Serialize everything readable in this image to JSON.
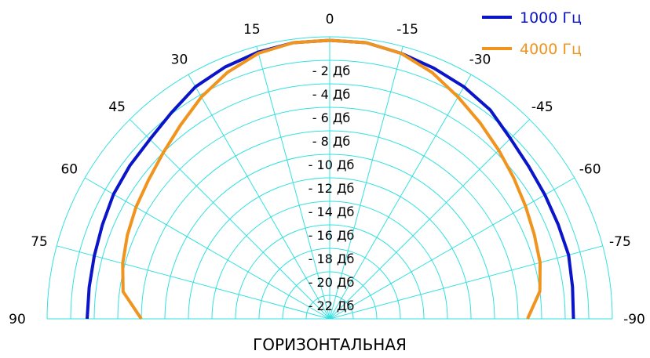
{
  "chart_data": {
    "type": "polar-line",
    "xlabel": "ГОРИЗОНТАЛЬНАЯ",
    "angle_range_deg": [
      -90,
      90
    ],
    "angle_step_deg": 15,
    "angle_labels": [
      {
        "angle": 90,
        "text": "90"
      },
      {
        "angle": 75,
        "text": "75"
      },
      {
        "angle": 60,
        "text": "60"
      },
      {
        "angle": 45,
        "text": "45"
      },
      {
        "angle": 30,
        "text": "30"
      },
      {
        "angle": 15,
        "text": "15"
      },
      {
        "angle": 0,
        "text": "0"
      },
      {
        "angle": -15,
        "text": "-15"
      },
      {
        "angle": -30,
        "text": "-30"
      },
      {
        "angle": -45,
        "text": "-45"
      },
      {
        "angle": -60,
        "text": "-60"
      },
      {
        "angle": -75,
        "text": "-75"
      },
      {
        "angle": -90,
        "text": "-90"
      }
    ],
    "r_range_db": [
      -24,
      0
    ],
    "ring_step_db": 2,
    "ring_labels": [
      {
        "db": -2,
        "text": "- 2 Дб"
      },
      {
        "db": -4,
        "text": "- 4 Дб"
      },
      {
        "db": -6,
        "text": "- 6 Дб"
      },
      {
        "db": -8,
        "text": "- 8 Дб"
      },
      {
        "db": -10,
        "text": "- 10 Дб"
      },
      {
        "db": -12,
        "text": "- 12 Дб"
      },
      {
        "db": -14,
        "text": "- 14 Дб"
      },
      {
        "db": -16,
        "text": "- 16 Дб"
      },
      {
        "db": -18,
        "text": "- 18 Дб"
      },
      {
        "db": -20,
        "text": "- 20 Дб"
      },
      {
        "db": -22,
        "text": "- 22 Дб"
      }
    ],
    "grid": true,
    "grid_color": "#33e0e0",
    "legend_position": "top-right",
    "series": [
      {
        "name": "1000 Гц",
        "color": "#0a14c8",
        "angles": [
          90,
          82.5,
          75,
          67.5,
          60,
          52.5,
          45,
          37.5,
          30,
          22.5,
          15,
          7.5,
          0,
          -7.5,
          -15,
          -22.5,
          -30,
          -37.5,
          -45,
          -52.5,
          -60,
          -67.5,
          -75,
          -82.5,
          -90
        ],
        "values_db": [
          -3.4,
          -3.4,
          -3.3,
          -3.1,
          -2.8,
          -2.6,
          -2.4,
          -1.9,
          -1.2,
          -0.8,
          -0.5,
          -0.3,
          -0.3,
          -0.3,
          -0.6,
          -0.9,
          -1.2,
          -1.6,
          -2.3,
          -2.7,
          -2.9,
          -3.0,
          -3.0,
          -3.2,
          -3.3
        ]
      },
      {
        "name": "4000 Гц",
        "color": "#f0941e",
        "angles": [
          90,
          82.5,
          75,
          67.5,
          60,
          52.5,
          45,
          37.5,
          30,
          22.5,
          15,
          7.5,
          0,
          -7.5,
          -15,
          -22.5,
          -30,
          -37.5,
          -45,
          -52.5,
          -60,
          -67.5,
          -75,
          -82.5,
          -90
        ],
        "values_db": [
          -8.0,
          -6.3,
          -5.8,
          -5.4,
          -5.0,
          -4.6,
          -4.0,
          -3.2,
          -2.2,
          -1.3,
          -0.6,
          -0.3,
          -0.3,
          -0.3,
          -0.6,
          -1.3,
          -2.2,
          -3.0,
          -3.7,
          -4.3,
          -4.8,
          -5.2,
          -5.5,
          -6.0,
          -7.2
        ]
      }
    ]
  }
}
